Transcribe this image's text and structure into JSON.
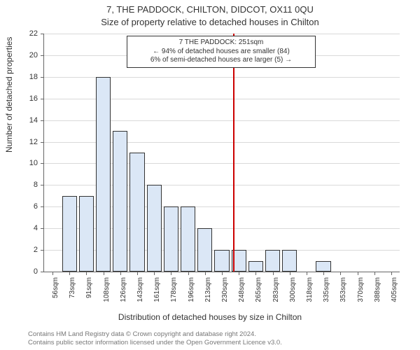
{
  "title_address": "7, THE PADDOCK, CHILTON, DIDCOT, OX11 0QU",
  "title_sub": "Size of property relative to detached houses in Chilton",
  "yaxis_label": "Number of detached properties",
  "xaxis_label": "Distribution of detached houses by size in Chilton",
  "footer_line1": "Contains HM Land Registry data © Crown copyright and database right 2024.",
  "footer_line2": "Contains public sector information licensed under the Open Government Licence v3.0.",
  "chart": {
    "type": "histogram",
    "background_color": "#ffffff",
    "grid_color": "#d9d9d9",
    "axis_color": "#666666",
    "bar_fill": "#dbe7f6",
    "bar_border": "#333333",
    "marker_line_color": "#cc0000",
    "marker_line_width": 2,
    "ylim": [
      0,
      22
    ],
    "ytick_step": 2,
    "x_start": 56,
    "x_step": 17.5,
    "x_tick_labels": [
      "56sqm",
      "73sqm",
      "91sqm",
      "108sqm",
      "126sqm",
      "143sqm",
      "161sqm",
      "178sqm",
      "196sqm",
      "213sqm",
      "230sqm",
      "248sqm",
      "265sqm",
      "283sqm",
      "300sqm",
      "318sqm",
      "335sqm",
      "353sqm",
      "370sqm",
      "388sqm",
      "405sqm"
    ],
    "bar_values": [
      0,
      7,
      7,
      18,
      13,
      11,
      8,
      6,
      6,
      4,
      2,
      2,
      1,
      2,
      2,
      0,
      1,
      0,
      0,
      0,
      0
    ],
    "marker_value_sqm": 251,
    "title_fontsize": 13,
    "label_fontsize": 12,
    "tick_fontsize": 10
  },
  "annotation": {
    "line1": "7 THE PADDOCK: 251sqm",
    "line2": "← 94% of detached houses are smaller (84)",
    "line3": "6% of semi-detached houses are larger (5) →"
  }
}
